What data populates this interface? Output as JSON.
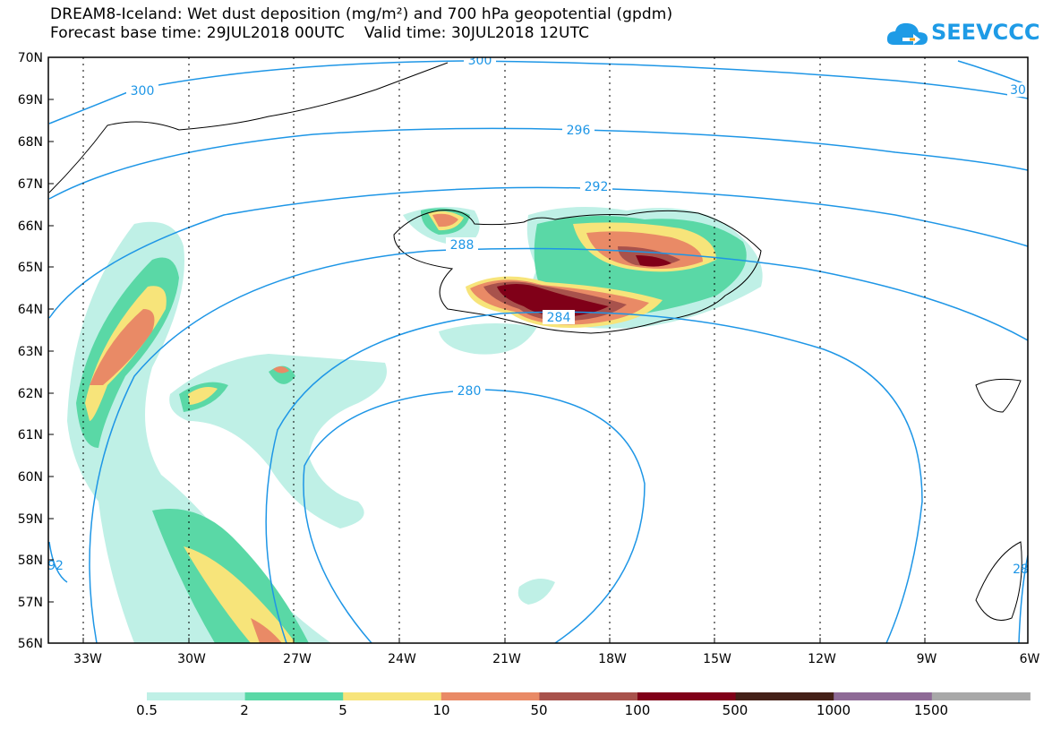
{
  "title": {
    "line1": "DREAM8-Iceland: Wet dust deposition (mg/m²) and 700 hPa geopotential (gpdm)",
    "line2": "Forecast base time: 29JUL2018 00UTC    Valid time: 30JUL2018 12UTC"
  },
  "logo": {
    "text": "SEEVCCC",
    "icon": "cloud-arrow-icon",
    "color": "#1e9be6"
  },
  "map": {
    "lon_range": [
      -34,
      -6
    ],
    "lat_range": [
      56,
      70
    ],
    "lat_ticks": [
      "70N",
      "69N",
      "68N",
      "67N",
      "66N",
      "65N",
      "64N",
      "63N",
      "62N",
      "61N",
      "60N",
      "59N",
      "58N",
      "57N",
      "56N"
    ],
    "lon_ticks": [
      "33W",
      "30W",
      "27W",
      "24W",
      "21W",
      "18W",
      "15W",
      "12W",
      "9W",
      "6W"
    ],
    "gridlines": true
  },
  "contours": {
    "variable": "700 hPa geopotential (gpdm)",
    "color": "#1e96e6",
    "labels": [
      "300",
      "300",
      "30",
      "296",
      "292",
      "288",
      "284",
      "280",
      "92",
      "28"
    ]
  },
  "colorbar": {
    "labels": [
      "0.5",
      "2",
      "5",
      "10",
      "50",
      "100",
      "500",
      "1000",
      "1500"
    ],
    "colors": [
      "#bff0e6",
      "#5ad8a6",
      "#f7e47a",
      "#e98a66",
      "#a8524c",
      "#800018",
      "#452018",
      "#8e6a96",
      "#a8a8a8"
    ]
  },
  "chart_data": {
    "type": "heatmap",
    "title": "DREAM8-Iceland: Wet dust deposition (mg/m²) and 700 hPa geopotential (gpdm)",
    "units": "mg/m²",
    "contour_levels_gpdm": [
      280,
      284,
      288,
      292,
      296,
      300
    ],
    "color_levels": [
      0.5,
      2,
      5,
      10,
      50,
      100,
      500,
      1000,
      1500
    ],
    "xlim": [
      -34,
      -6
    ],
    "ylim": [
      56,
      70
    ],
    "grid": true
  }
}
